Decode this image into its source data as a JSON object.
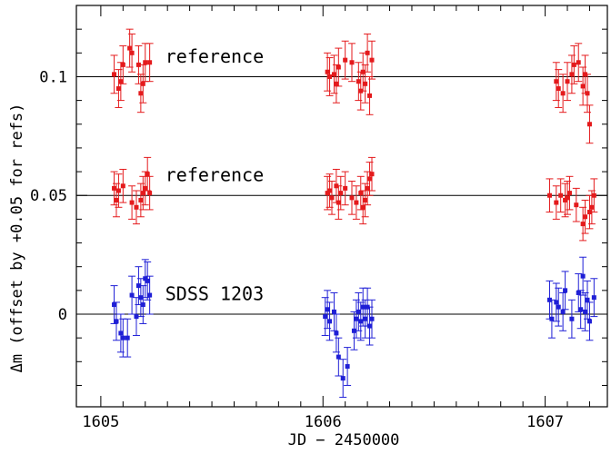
{
  "chart_data": {
    "type": "scatter",
    "xlabel": "JD − 2450000",
    "ylabel": "Δm (offset by +0.05 for refs)",
    "xlim": [
      1604.89,
      1607.28
    ],
    "ylim": [
      -0.039,
      0.13
    ],
    "xticks": [
      1605,
      1606,
      1607
    ],
    "xtick_labels": [
      "1605",
      "1606",
      "1607"
    ],
    "yticks": [
      0,
      0.05,
      0.1
    ],
    "ytick_labels": [
      "0",
      "0.05",
      "0.1"
    ],
    "hlines": [
      0,
      0.05,
      0.1
    ],
    "annotations": [
      {
        "text": "reference",
        "x": 1605.29,
        "y": 0.106
      },
      {
        "text": "reference",
        "x": 1605.29,
        "y": 0.056
      },
      {
        "text": "SDSS 1203",
        "x": 1605.29,
        "y": 0.006
      }
    ],
    "series": [
      {
        "color": "#e41a1c",
        "x": [
          1605.06,
          1605.08,
          1605.09,
          1605.1,
          1605.13,
          1605.14,
          1605.17,
          1605.18,
          1605.19,
          1605.2,
          1605.22,
          1606.02,
          1606.03,
          1606.05,
          1606.06,
          1606.07,
          1606.1,
          1606.13,
          1606.16,
          1606.17,
          1606.18,
          1606.19,
          1606.2,
          1606.21,
          1606.22,
          1607.05,
          1607.06,
          1607.08,
          1607.1,
          1607.12,
          1607.13,
          1607.15,
          1607.17,
          1607.18,
          1607.19,
          1607.2
        ],
        "y": [
          0.101,
          0.095,
          0.098,
          0.105,
          0.112,
          0.11,
          0.105,
          0.093,
          0.097,
          0.106,
          0.106,
          0.102,
          0.1,
          0.101,
          0.097,
          0.104,
          0.107,
          0.106,
          0.098,
          0.094,
          0.102,
          0.097,
          0.11,
          0.092,
          0.107,
          0.098,
          0.095,
          0.093,
          0.098,
          0.101,
          0.105,
          0.106,
          0.096,
          0.101,
          0.093,
          0.08
        ],
        "yerr": 0.008
      },
      {
        "color": "#e41a1c",
        "x": [
          1605.06,
          1605.07,
          1605.08,
          1605.1,
          1605.14,
          1605.16,
          1605.18,
          1605.19,
          1605.2,
          1605.21,
          1605.22,
          1606.02,
          1606.03,
          1606.04,
          1606.06,
          1606.07,
          1606.08,
          1606.1,
          1606.13,
          1606.15,
          1606.17,
          1606.18,
          1606.19,
          1606.2,
          1606.21,
          1606.22,
          1607.02,
          1607.05,
          1607.07,
          1607.09,
          1607.1,
          1607.11,
          1607.14,
          1607.17,
          1607.18,
          1607.2,
          1607.21,
          1607.22
        ],
        "y": [
          0.053,
          0.048,
          0.052,
          0.054,
          0.047,
          0.045,
          0.048,
          0.051,
          0.053,
          0.059,
          0.051,
          0.051,
          0.052,
          0.049,
          0.054,
          0.047,
          0.051,
          0.053,
          0.049,
          0.047,
          0.051,
          0.045,
          0.048,
          0.053,
          0.057,
          0.059,
          0.05,
          0.047,
          0.05,
          0.048,
          0.049,
          0.051,
          0.046,
          0.038,
          0.041,
          0.043,
          0.045,
          0.05
        ],
        "yerr": 0.007
      },
      {
        "color": "#1f1fd6",
        "x": [
          1605.06,
          1605.07,
          1605.09,
          1605.1,
          1605.12,
          1605.14,
          1605.16,
          1605.17,
          1605.18,
          1605.19,
          1605.2,
          1605.21,
          1605.22,
          1606.01,
          1606.02,
          1606.03,
          1606.05,
          1606.06,
          1606.07,
          1606.09,
          1606.11,
          1606.14,
          1606.15,
          1606.16,
          1606.17,
          1606.18,
          1606.19,
          1606.2,
          1606.21,
          1606.22,
          1607.02,
          1607.03,
          1607.05,
          1607.06,
          1607.08,
          1607.09,
          1607.12,
          1607.15,
          1607.16,
          1607.17,
          1607.18,
          1607.19,
          1607.2,
          1607.22
        ],
        "y": [
          0.004,
          -0.003,
          -0.008,
          -0.01,
          -0.01,
          0.008,
          -0.001,
          0.012,
          0.007,
          0.004,
          0.015,
          0.014,
          0.008,
          -0.001,
          0.002,
          -0.003,
          0.001,
          -0.008,
          -0.018,
          -0.027,
          -0.022,
          -0.007,
          -0.002,
          0.001,
          -0.003,
          0.003,
          -0.002,
          0.003,
          -0.005,
          -0.002,
          0.006,
          -0.002,
          0.005,
          0.003,
          0.001,
          0.01,
          -0.002,
          0.009,
          0.002,
          0.016,
          0.001,
          0.006,
          -0.003,
          0.007
        ],
        "yerr": 0.008
      }
    ]
  }
}
